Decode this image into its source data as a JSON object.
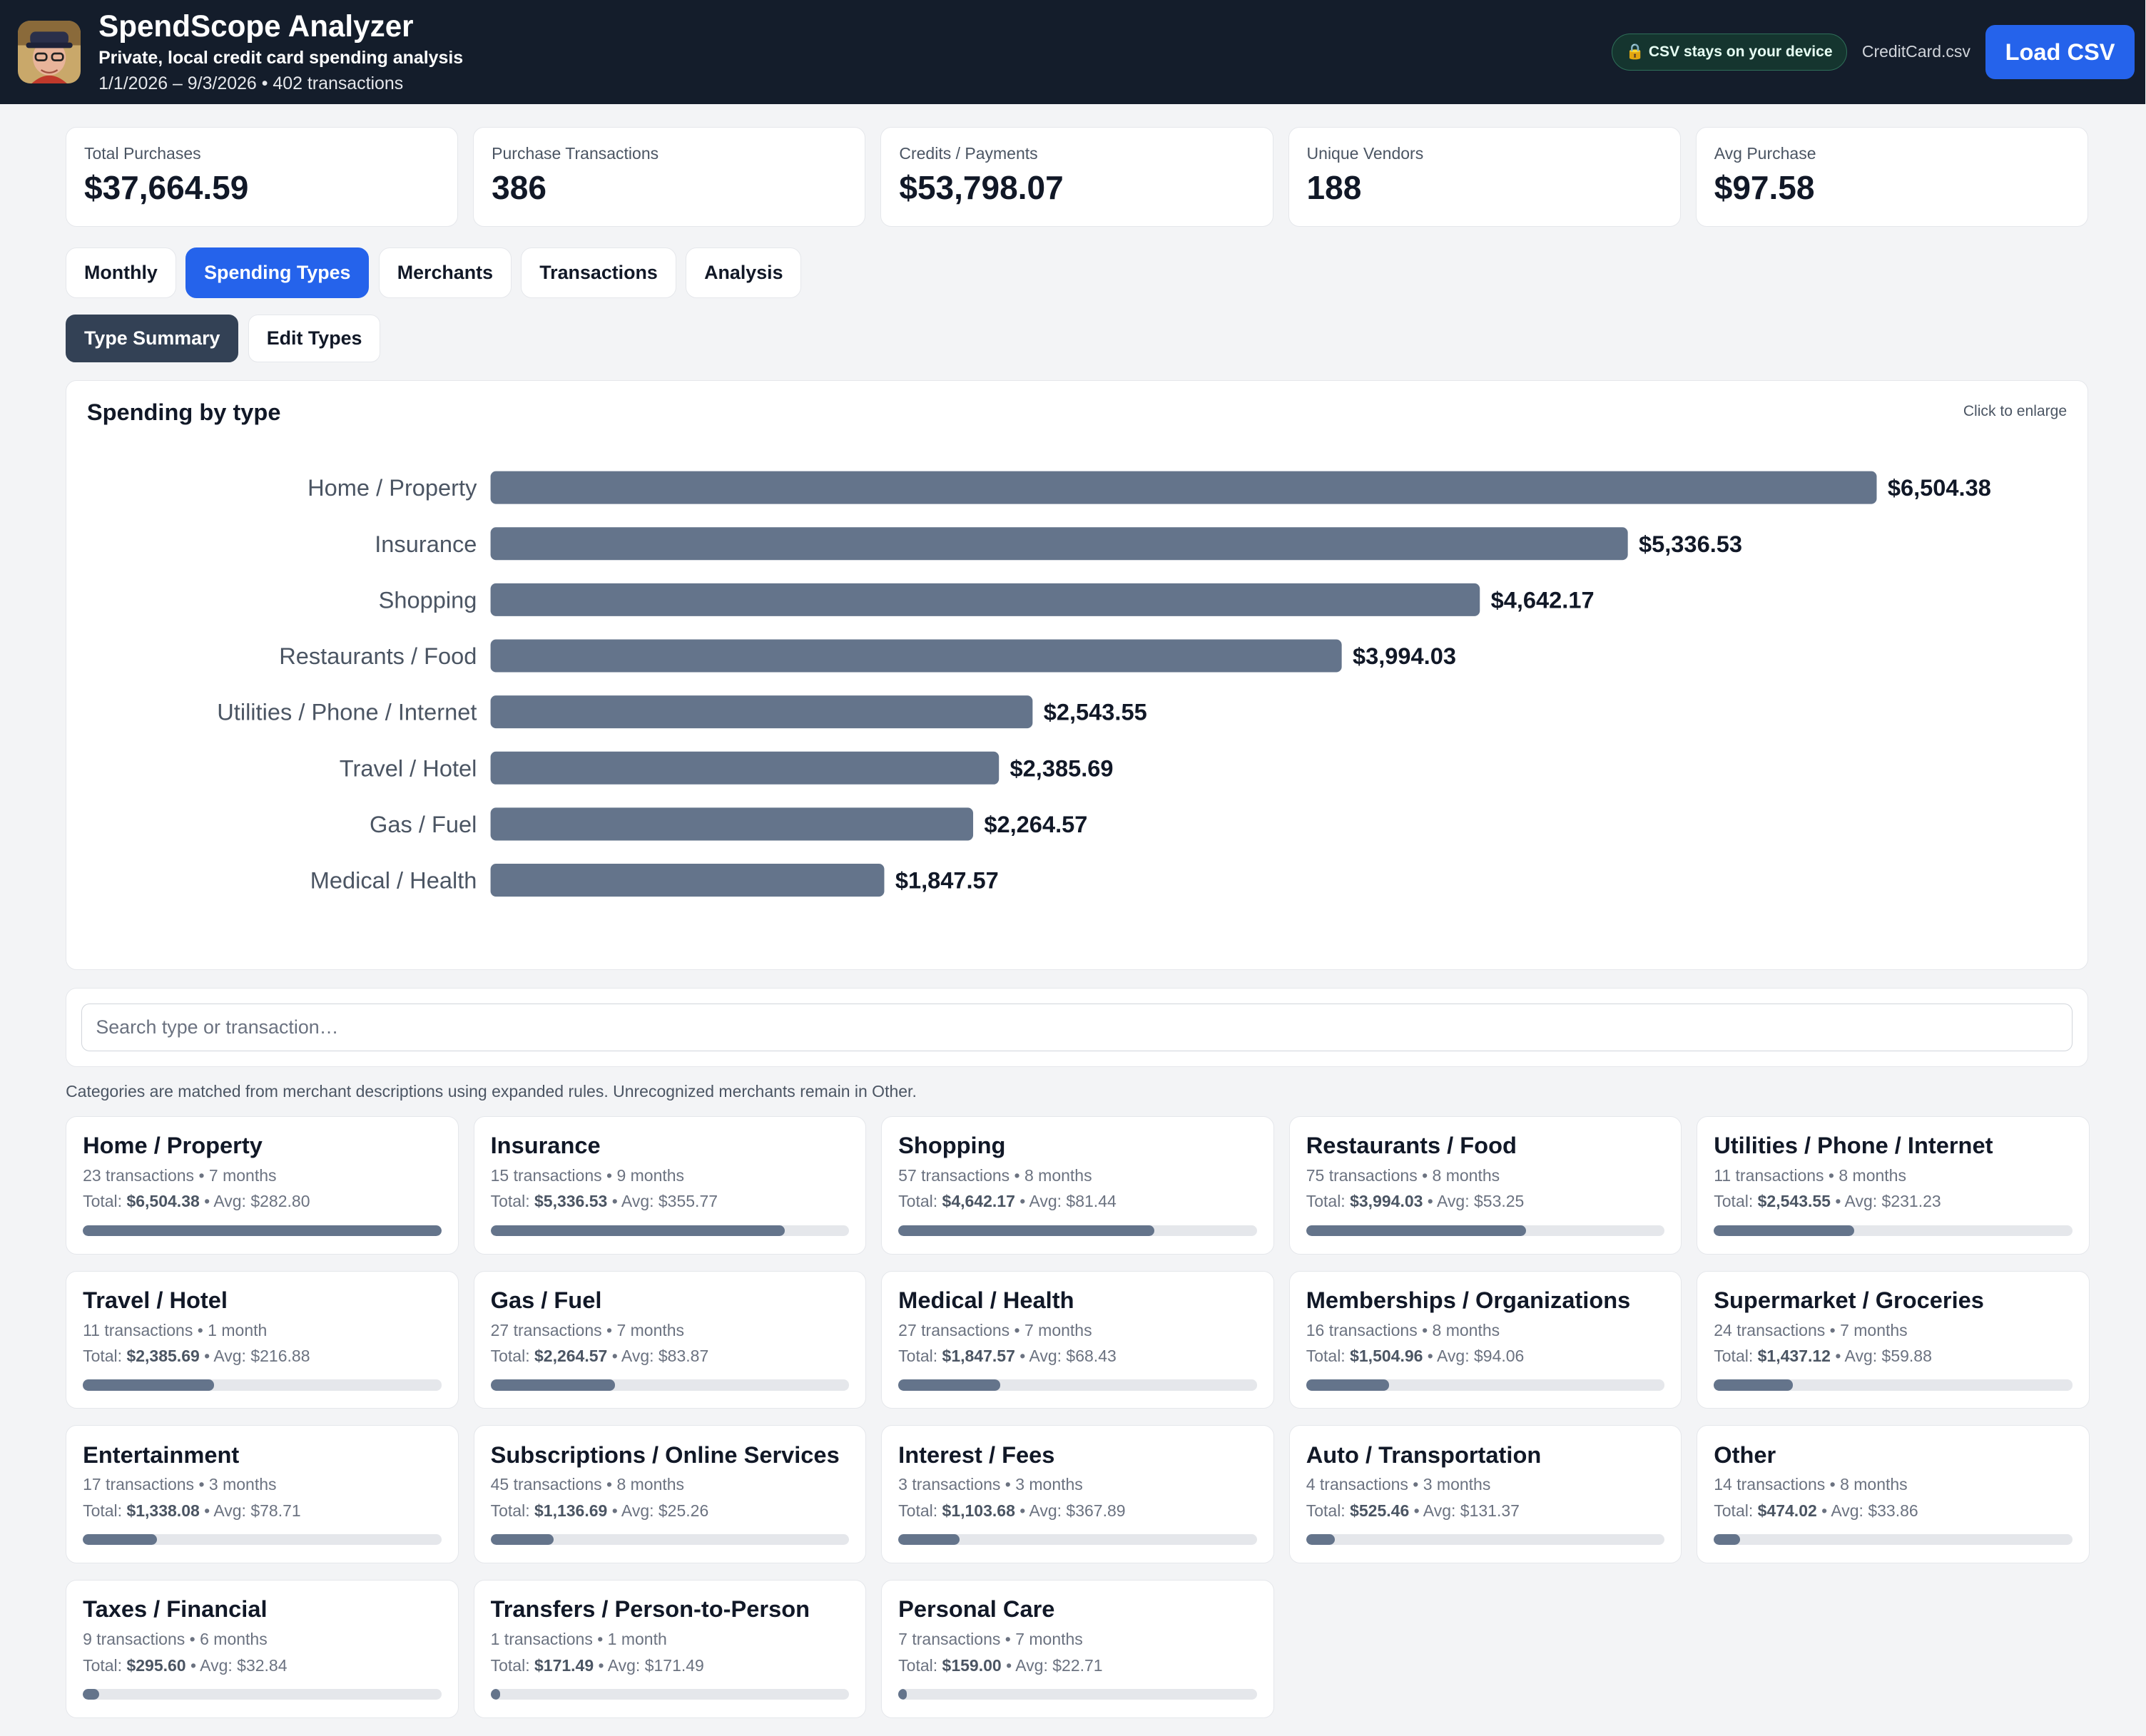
{
  "header": {
    "title": "SpendScope Analyzer",
    "subtitle": "Private, local credit card spending analysis",
    "date_range": "1/1/2026 – 9/3/2026 • 402 transactions",
    "privacy_badge": "CSV stays on your device",
    "lock_icon": "lock-icon",
    "file_name": "CreditCard.csv",
    "load_button": "Load CSV"
  },
  "stats": [
    {
      "label": "Total Purchases",
      "value": "$37,664.59"
    },
    {
      "label": "Purchase Transactions",
      "value": "386"
    },
    {
      "label": "Credits / Payments",
      "value": "$53,798.07"
    },
    {
      "label": "Unique Vendors",
      "value": "188"
    },
    {
      "label": "Avg Purchase",
      "value": "$97.58"
    }
  ],
  "tabs": [
    {
      "label": "Monthly",
      "active": false
    },
    {
      "label": "Spending Types",
      "active": true
    },
    {
      "label": "Merchants",
      "active": false
    },
    {
      "label": "Transactions",
      "active": false
    },
    {
      "label": "Analysis",
      "active": false
    }
  ],
  "subtabs": [
    {
      "label": "Type Summary",
      "active": true
    },
    {
      "label": "Edit Types",
      "active": false
    }
  ],
  "chart_panel": {
    "title": "Spending by type",
    "enlarge_hint": "Click to enlarge"
  },
  "chart_data": {
    "type": "bar",
    "orientation": "horizontal",
    "categories": [
      "Home / Property",
      "Insurance",
      "Shopping",
      "Restaurants / Food",
      "Utilities / Phone / Internet",
      "Travel / Hotel",
      "Gas / Fuel",
      "Medical / Health"
    ],
    "values": [
      6504.38,
      5336.53,
      4642.17,
      3994.03,
      2543.55,
      2385.69,
      2264.57,
      1847.57
    ],
    "value_labels": [
      "$6,504.38",
      "$5,336.53",
      "$4,642.17",
      "$3,994.03",
      "$2,543.55",
      "$2,385.69",
      "$2,264.57",
      "$1,847.57"
    ],
    "bar_color": "#64748b",
    "grid": false
  },
  "search": {
    "placeholder": "Search type or transaction…",
    "value": ""
  },
  "note": "Categories are matched from merchant descriptions using expanded rules. Unrecognized merchants remain in Other.",
  "types": [
    {
      "name": "Home / Property",
      "meta": "23 transactions • 7 months",
      "total": "$6,504.38",
      "avg": "$282.80",
      "share": 1.0
    },
    {
      "name": "Insurance",
      "meta": "15 transactions • 9 months",
      "total": "$5,336.53",
      "avg": "$355.77",
      "share": 0.82
    },
    {
      "name": "Shopping",
      "meta": "57 transactions • 8 months",
      "total": "$4,642.17",
      "avg": "$81.44",
      "share": 0.714
    },
    {
      "name": "Restaurants / Food",
      "meta": "75 transactions • 8 months",
      "total": "$3,994.03",
      "avg": "$53.25",
      "share": 0.614
    },
    {
      "name": "Utilities / Phone / Internet",
      "meta": "11 transactions • 8 months",
      "total": "$2,543.55",
      "avg": "$231.23",
      "share": 0.391
    },
    {
      "name": "Travel / Hotel",
      "meta": "11 transactions • 1 month",
      "total": "$2,385.69",
      "avg": "$216.88",
      "share": 0.367
    },
    {
      "name": "Gas / Fuel",
      "meta": "27 transactions • 7 months",
      "total": "$2,264.57",
      "avg": "$83.87",
      "share": 0.348
    },
    {
      "name": "Medical / Health",
      "meta": "27 transactions • 7 months",
      "total": "$1,847.57",
      "avg": "$68.43",
      "share": 0.284
    },
    {
      "name": "Memberships / Organizations",
      "meta": "16 transactions • 8 months",
      "total": "$1,504.96",
      "avg": "$94.06",
      "share": 0.231
    },
    {
      "name": "Supermarket / Groceries",
      "meta": "24 transactions • 7 months",
      "total": "$1,437.12",
      "avg": "$59.88",
      "share": 0.221
    },
    {
      "name": "Entertainment",
      "meta": "17 transactions • 3 months",
      "total": "$1,338.08",
      "avg": "$78.71",
      "share": 0.206
    },
    {
      "name": "Subscriptions / Online Services",
      "meta": "45 transactions • 8 months",
      "total": "$1,136.69",
      "avg": "$25.26",
      "share": 0.175
    },
    {
      "name": "Interest / Fees",
      "meta": "3 transactions • 3 months",
      "total": "$1,103.68",
      "avg": "$367.89",
      "share": 0.17
    },
    {
      "name": "Auto / Transportation",
      "meta": "4 transactions • 3 months",
      "total": "$525.46",
      "avg": "$131.37",
      "share": 0.081
    },
    {
      "name": "Other",
      "meta": "14 transactions • 8 months",
      "total": "$474.02",
      "avg": "$33.86",
      "share": 0.073
    },
    {
      "name": "Taxes / Financial",
      "meta": "9 transactions • 6 months",
      "total": "$295.60",
      "avg": "$32.84",
      "share": 0.045
    },
    {
      "name": "Transfers / Person-to-Person",
      "meta": "1 transactions • 1 month",
      "total": "$171.49",
      "avg": "$171.49",
      "share": 0.026
    },
    {
      "name": "Personal Care",
      "meta": "7 transactions • 7 months",
      "total": "$159.00",
      "avg": "$22.71",
      "share": 0.024
    }
  ],
  "labels": {
    "total_prefix": "Total: ",
    "avg_prefix": " • Avg: "
  }
}
